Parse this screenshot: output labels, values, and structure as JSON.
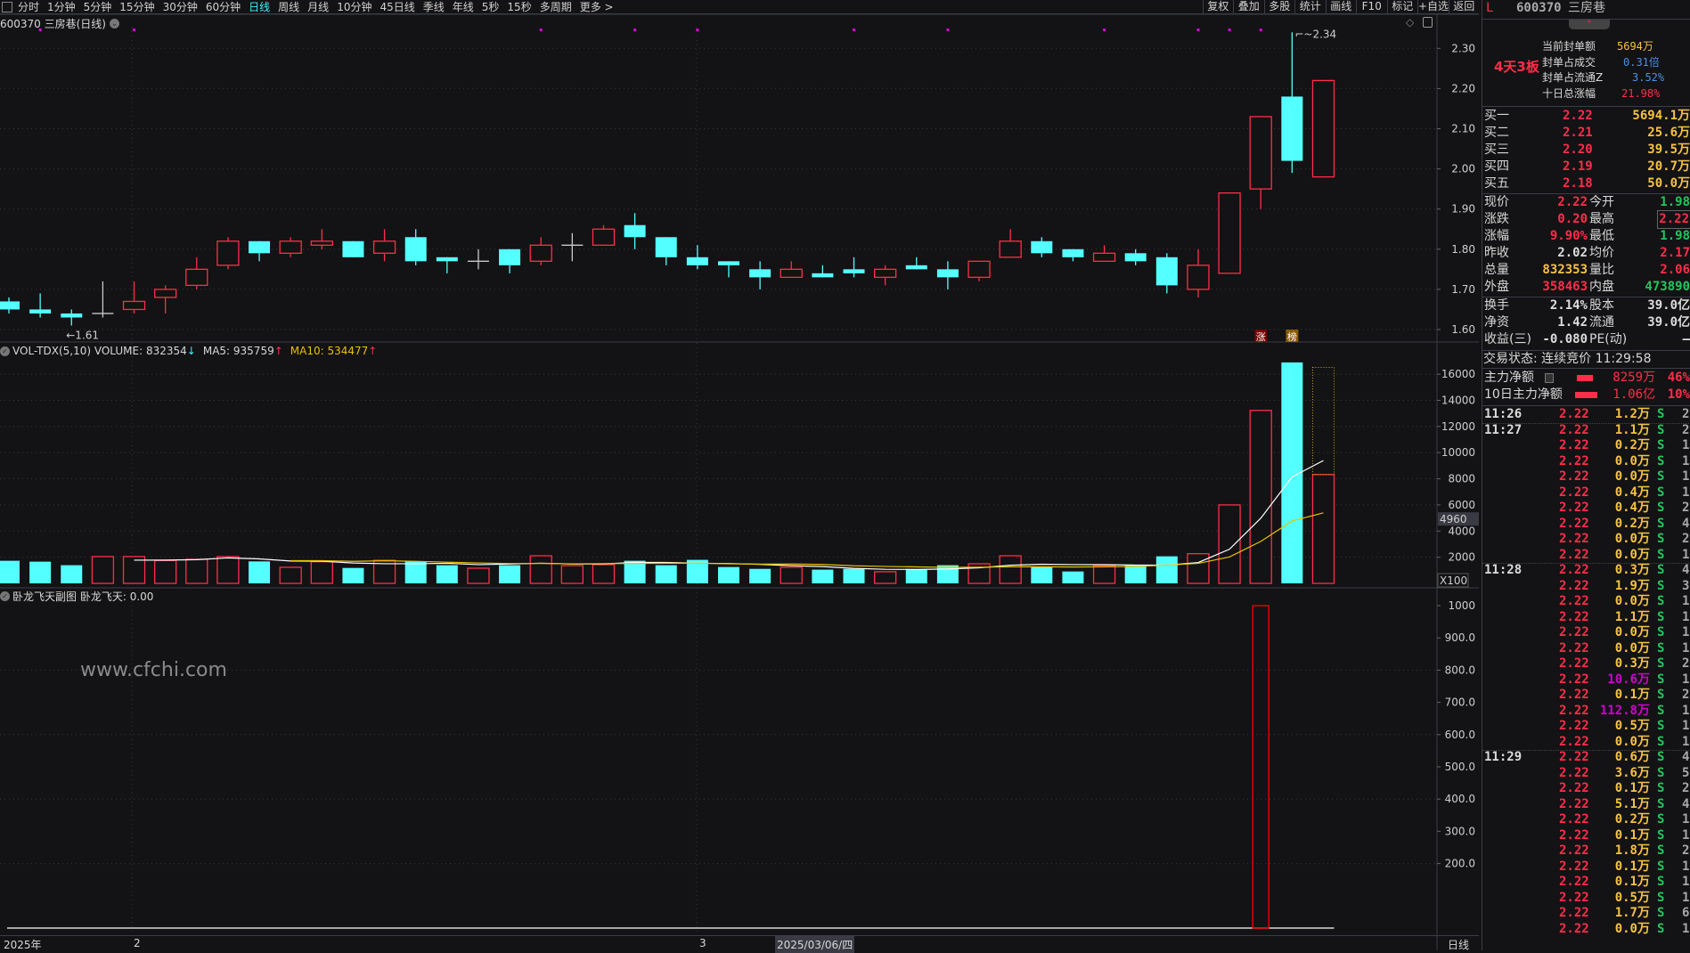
{
  "toolbar": {
    "periods": [
      "分时",
      "1分钟",
      "5分钟",
      "15分钟",
      "30分钟",
      "60分钟",
      "日线",
      "周线",
      "月线",
      "10分钟",
      "45日线",
      "季线",
      "年线",
      "5秒",
      "15秒",
      "多周期",
      "更多 >"
    ],
    "active_period": "日线",
    "tools": [
      "复权",
      "叠加",
      "多股",
      "统计",
      "画线",
      "F10",
      "标记",
      "+自选",
      "返回"
    ]
  },
  "chart_title": "600370 三房巷(日线)",
  "colors": {
    "up": "#ff2d4a",
    "down": "#54ffff",
    "doji": "#c8c8c8",
    "ma5": "#ffffff",
    "ma10": "#e8c200",
    "marker": "#e000e0",
    "indicator": "#ff0000"
  },
  "chart_data": [
    {
      "type": "candlestick",
      "ohlc": [
        [
          1.67,
          1.68,
          1.64,
          1.65
        ],
        [
          1.65,
          1.69,
          1.63,
          1.64
        ],
        [
          1.64,
          1.65,
          1.61,
          1.63
        ],
        [
          1.64,
          1.72,
          1.63,
          1.64
        ],
        [
          1.65,
          1.72,
          1.64,
          1.67
        ],
        [
          1.68,
          1.71,
          1.64,
          1.7
        ],
        [
          1.71,
          1.78,
          1.7,
          1.75
        ],
        [
          1.76,
          1.83,
          1.75,
          1.82
        ],
        [
          1.82,
          1.82,
          1.77,
          1.79
        ],
        [
          1.79,
          1.83,
          1.78,
          1.82
        ],
        [
          1.81,
          1.85,
          1.8,
          1.82
        ],
        [
          1.82,
          1.82,
          1.78,
          1.78
        ],
        [
          1.79,
          1.85,
          1.77,
          1.82
        ],
        [
          1.83,
          1.85,
          1.76,
          1.77
        ],
        [
          1.78,
          1.78,
          1.74,
          1.77
        ],
        [
          1.77,
          1.8,
          1.75,
          1.77
        ],
        [
          1.8,
          1.8,
          1.74,
          1.76
        ],
        [
          1.77,
          1.83,
          1.76,
          1.81
        ],
        [
          1.81,
          1.84,
          1.77,
          1.81
        ],
        [
          1.81,
          1.86,
          1.81,
          1.85
        ],
        [
          1.86,
          1.89,
          1.8,
          1.83
        ],
        [
          1.83,
          1.83,
          1.76,
          1.78
        ],
        [
          1.78,
          1.81,
          1.75,
          1.76
        ],
        [
          1.77,
          1.77,
          1.73,
          1.76
        ],
        [
          1.75,
          1.77,
          1.7,
          1.73
        ],
        [
          1.73,
          1.77,
          1.73,
          1.75
        ],
        [
          1.74,
          1.76,
          1.73,
          1.73
        ],
        [
          1.75,
          1.78,
          1.73,
          1.74
        ],
        [
          1.73,
          1.76,
          1.71,
          1.75
        ],
        [
          1.76,
          1.78,
          1.75,
          1.75
        ],
        [
          1.75,
          1.77,
          1.7,
          1.73
        ],
        [
          1.73,
          1.77,
          1.72,
          1.77
        ],
        [
          1.78,
          1.85,
          1.78,
          1.82
        ],
        [
          1.82,
          1.83,
          1.78,
          1.79
        ],
        [
          1.8,
          1.8,
          1.77,
          1.78
        ],
        [
          1.77,
          1.81,
          1.77,
          1.79
        ],
        [
          1.79,
          1.8,
          1.76,
          1.77
        ],
        [
          1.78,
          1.79,
          1.69,
          1.71
        ],
        [
          1.7,
          1.8,
          1.68,
          1.76
        ],
        [
          1.74,
          1.94,
          1.74,
          1.94
        ],
        [
          1.95,
          2.13,
          1.9,
          2.13
        ],
        [
          2.18,
          2.34,
          1.99,
          2.02
        ],
        [
          1.98,
          2.22,
          1.98,
          2.22
        ]
      ],
      "ylim": [
        1.6,
        2.3
      ],
      "y_ticks": [
        "1.60",
        "1.70",
        "1.80",
        "1.90",
        "2.00",
        "2.10",
        "2.20",
        "2.30"
      ],
      "grid": true,
      "low_label": "1.61",
      "high_label": "2.34",
      "marker_indices": [
        1,
        4,
        17,
        20,
        22,
        27,
        30,
        35,
        38,
        39,
        40
      ],
      "badges": [
        {
          "index": 40,
          "text": "涨"
        },
        {
          "index": 41,
          "text": "榜"
        }
      ]
    },
    {
      "type": "bar",
      "indicator": "VOL-TDX(5,10)",
      "volume_label": "VOLUME: 832354",
      "ma5_label": "MA5: 935759",
      "ma10_label": "MA10: 534477",
      "unit": "X100",
      "cursor_value": "4960",
      "values": [
        1730,
        1660,
        1390,
        2050,
        2050,
        1750,
        1840,
        2050,
        1680,
        1230,
        1660,
        1180,
        1770,
        1680,
        1390,
        1160,
        1390,
        2110,
        1360,
        1430,
        1730,
        1390,
        1800,
        1250,
        1110,
        1230,
        1050,
        1110,
        890,
        1050,
        1390,
        1500,
        2110,
        1270,
        910,
        1360,
        1360,
        2070,
        2270,
        6000,
        13230,
        17140,
        8324
      ],
      "projected_last": 16520,
      "ylim": [
        0,
        17000
      ],
      "y_ticks": [
        "2000",
        "4000",
        "6000",
        "8000",
        "10000",
        "12000",
        "14000",
        "16000"
      ]
    },
    {
      "type": "bar",
      "indicator": "卧龙飞天副图",
      "value_label": "卧龙飞天: 0.00",
      "signal_index": 40,
      "signal_value": 1000,
      "ylim": [
        0,
        1000
      ],
      "y_ticks": [
        "200.0",
        "300.0",
        "400.0",
        "500.0",
        "600.0",
        "700.0",
        "800.0",
        "900.0",
        "1000"
      ]
    }
  ],
  "x_axis": {
    "year": "2025年",
    "month_feb": "2",
    "month_mar": "3",
    "cursor_date": "2025/03/06/四",
    "period": "日线"
  },
  "watermark": "www.cfchi.com",
  "panel": {
    "flag": "L",
    "code": "600370",
    "name": "三房巷",
    "tag": "4天3板",
    "info": [
      {
        "label": "当前封单额",
        "value": "5694万"
      },
      {
        "label": "封单占成交",
        "value": "0.31倍"
      },
      {
        "label": "封单占流通Z",
        "value": "3.52%"
      },
      {
        "label": "十日总涨幅",
        "value": "21.98%"
      }
    ],
    "bids": [
      {
        "label": "买一",
        "price": "2.22",
        "vol": "5694.1万"
      },
      {
        "label": "买二",
        "price": "2.21",
        "vol": "25.6万"
      },
      {
        "label": "买三",
        "price": "2.20",
        "vol": "39.5万"
      },
      {
        "label": "买四",
        "price": "2.19",
        "vol": "20.7万"
      },
      {
        "label": "买五",
        "price": "2.18",
        "vol": "50.0万"
      }
    ],
    "quote": [
      {
        "l1": "现价",
        "v1": "2.22",
        "c1": "red",
        "l2": "今开",
        "v2": "1.98",
        "c2": "green"
      },
      {
        "l1": "涨跌",
        "v1": "0.20",
        "c1": "red",
        "l2": "最高",
        "v2": "2.22",
        "c2": "red"
      },
      {
        "l1": "涨幅",
        "v1": "9.90%",
        "c1": "red",
        "l2": "最低",
        "v2": "1.98",
        "c2": "green"
      },
      {
        "l1": "昨收",
        "v1": "2.02",
        "c1": "wht",
        "l2": "均价",
        "v2": "2.17",
        "c2": "red"
      },
      {
        "l1": "总量",
        "v1": "832353",
        "c1": "yel",
        "l2": "量比",
        "v2": "2.06",
        "c2": "red"
      },
      {
        "l1": "外盘",
        "v1": "358463",
        "c1": "red",
        "l2": "内盘",
        "v2": "473890",
        "c2": "green"
      }
    ],
    "fund": [
      {
        "l1": "换手",
        "v1": "2.14%",
        "l2": "股本",
        "v2": "39.0亿"
      },
      {
        "l1": "净资",
        "v1": "1.42",
        "l2": "流通",
        "v2": "39.0亿"
      },
      {
        "l1": "收益(三)",
        "v1": "-0.080",
        "l2": "PE(动)",
        "v2": "–"
      }
    ],
    "status": "交易状态: 连续竞价 11:29:58",
    "flows": [
      {
        "label": "主力净额",
        "amount": "8259万",
        "pct": "46%"
      },
      {
        "label": "10日主力净额",
        "amount": "1.06亿",
        "pct": "10%"
      }
    ],
    "ticks": [
      {
        "t": "11:26",
        "p": "2.22",
        "v": "1.2万",
        "s": "S",
        "n": "2"
      },
      {
        "t": "11:27",
        "p": "2.22",
        "v": "1.1万",
        "s": "S",
        "n": "2"
      },
      {
        "t": "",
        "p": "2.22",
        "v": "0.2万",
        "s": "S",
        "n": "1"
      },
      {
        "t": "",
        "p": "2.22",
        "v": "0.0万",
        "s": "S",
        "n": "1"
      },
      {
        "t": "",
        "p": "2.22",
        "v": "0.0万",
        "s": "S",
        "n": "1"
      },
      {
        "t": "",
        "p": "2.22",
        "v": "0.4万",
        "s": "S",
        "n": "1"
      },
      {
        "t": "",
        "p": "2.22",
        "v": "0.4万",
        "s": "S",
        "n": "2"
      },
      {
        "t": "",
        "p": "2.22",
        "v": "0.2万",
        "s": "S",
        "n": "4"
      },
      {
        "t": "",
        "p": "2.22",
        "v": "0.0万",
        "s": "S",
        "n": "2"
      },
      {
        "t": "",
        "p": "2.22",
        "v": "0.0万",
        "s": "S",
        "n": "1"
      },
      {
        "t": "11:28",
        "p": "2.22",
        "v": "0.3万",
        "s": "S",
        "n": "4"
      },
      {
        "t": "",
        "p": "2.22",
        "v": "1.9万",
        "s": "S",
        "n": "3"
      },
      {
        "t": "",
        "p": "2.22",
        "v": "0.0万",
        "s": "S",
        "n": "1"
      },
      {
        "t": "",
        "p": "2.22",
        "v": "1.1万",
        "s": "S",
        "n": "1"
      },
      {
        "t": "",
        "p": "2.22",
        "v": "0.0万",
        "s": "S",
        "n": "1"
      },
      {
        "t": "",
        "p": "2.22",
        "v": "0.0万",
        "s": "S",
        "n": "1"
      },
      {
        "t": "",
        "p": "2.22",
        "v": "0.3万",
        "s": "S",
        "n": "2"
      },
      {
        "t": "",
        "p": "2.22",
        "v": "10.6万",
        "s": "S",
        "n": "1",
        "big": true
      },
      {
        "t": "",
        "p": "2.22",
        "v": "0.1万",
        "s": "S",
        "n": "2"
      },
      {
        "t": "",
        "p": "2.22",
        "v": "112.8万",
        "s": "S",
        "n": "1",
        "big": true
      },
      {
        "t": "",
        "p": "2.22",
        "v": "0.5万",
        "s": "S",
        "n": "1"
      },
      {
        "t": "",
        "p": "2.22",
        "v": "0.0万",
        "s": "S",
        "n": "1"
      },
      {
        "t": "11:29",
        "p": "2.22",
        "v": "0.6万",
        "s": "S",
        "n": "4"
      },
      {
        "t": "",
        "p": "2.22",
        "v": "3.6万",
        "s": "S",
        "n": "5"
      },
      {
        "t": "",
        "p": "2.22",
        "v": "0.1万",
        "s": "S",
        "n": "2"
      },
      {
        "t": "",
        "p": "2.22",
        "v": "5.1万",
        "s": "S",
        "n": "4"
      },
      {
        "t": "",
        "p": "2.22",
        "v": "0.2万",
        "s": "S",
        "n": "1"
      },
      {
        "t": "",
        "p": "2.22",
        "v": "0.1万",
        "s": "S",
        "n": "1"
      },
      {
        "t": "",
        "p": "2.22",
        "v": "1.8万",
        "s": "S",
        "n": "2"
      },
      {
        "t": "",
        "p": "2.22",
        "v": "0.1万",
        "s": "S",
        "n": "1"
      },
      {
        "t": "",
        "p": "2.22",
        "v": "0.1万",
        "s": "S",
        "n": "1"
      },
      {
        "t": "",
        "p": "2.22",
        "v": "0.5万",
        "s": "S",
        "n": "1"
      },
      {
        "t": "",
        "p": "2.22",
        "v": "1.7万",
        "s": "S",
        "n": "6"
      },
      {
        "t": "",
        "p": "2.22",
        "v": "0.0万",
        "s": "S",
        "n": "1"
      }
    ]
  }
}
